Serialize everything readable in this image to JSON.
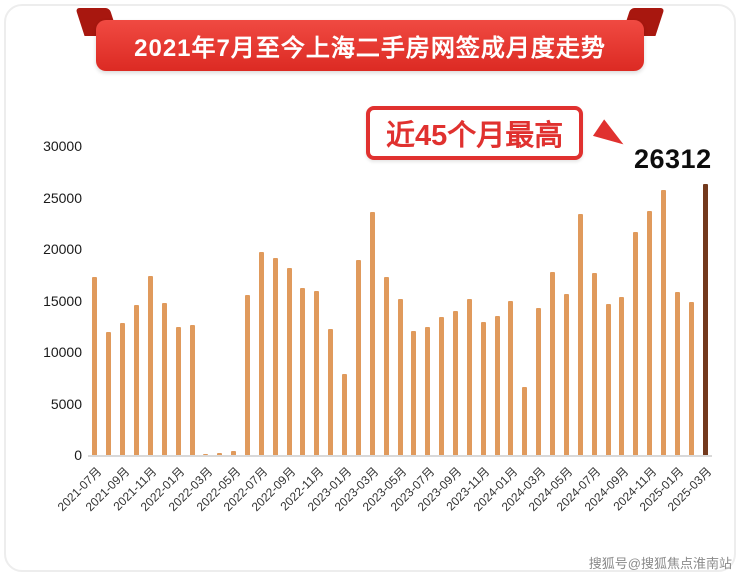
{
  "banner": {
    "title": "2021年7月至今上海二手房网签成月度走势"
  },
  "annotation": {
    "callout": "近45个月最高",
    "peak_value": "26312",
    "arrow_icon": "right-down-arrow"
  },
  "watermark": "搜狐号@搜狐焦点淮南站",
  "colors": {
    "bar": "#e09a5c",
    "highlight_bar": "#73391d",
    "banner_red": "#e0312f",
    "callout_red": "#e0312f",
    "axis_line": "#d9d9d9"
  },
  "chart_data": {
    "type": "bar",
    "title": "2021年7月至今上海二手房网签成月度走势",
    "xlabel": "",
    "ylabel": "",
    "ylim": [
      0,
      30000
    ],
    "yticks": [
      0,
      5000,
      10000,
      15000,
      20000,
      25000,
      30000
    ],
    "grid": false,
    "legend": false,
    "x_tick_step": 2,
    "categories": [
      "2021-07月",
      "2021-08月",
      "2021-09月",
      "2021-10月",
      "2021-11月",
      "2021-12月",
      "2022-01月",
      "2022-02月",
      "2022-03月",
      "2022-04月",
      "2022-05月",
      "2022-06月",
      "2022-07月",
      "2022-08月",
      "2022-09月",
      "2022-10月",
      "2022-11月",
      "2022-12月",
      "2023-01月",
      "2023-02月",
      "2023-03月",
      "2023-04月",
      "2023-05月",
      "2023-06月",
      "2023-07月",
      "2023-08月",
      "2023-09月",
      "2023-10月",
      "2023-11月",
      "2023-12月",
      "2024-01月",
      "2024-02月",
      "2024-03月",
      "2024-04月",
      "2024-05月",
      "2024-06月",
      "2024-07月",
      "2024-08月",
      "2024-09月",
      "2024-10月",
      "2024-11月",
      "2024-12月",
      "2025-01月",
      "2025-02月",
      "2025-03月"
    ],
    "values": [
      17300,
      11900,
      12800,
      14600,
      17400,
      14800,
      12400,
      12600,
      100,
      200,
      400,
      15500,
      19700,
      19100,
      18200,
      16200,
      15900,
      12200,
      7900,
      18900,
      23600,
      17300,
      15100,
      12000,
      12400,
      13400,
      14000,
      15100,
      12900,
      13500,
      15000,
      6600,
      14300,
      17800,
      15600,
      23400,
      17700,
      14700,
      15300,
      21700,
      23700,
      25700,
      15800,
      14900,
      26312
    ],
    "highlight": {
      "index": 44,
      "value": 26312
    }
  }
}
